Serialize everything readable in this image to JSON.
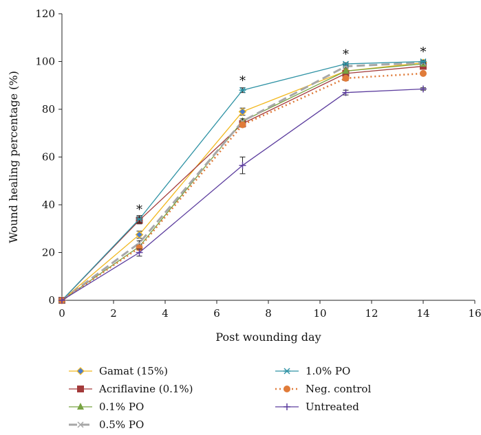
{
  "chart_data": {
    "type": "line",
    "xlabel": "Post wounding day",
    "ylabel": "Wound healing percentage (%)",
    "xlim": [
      0,
      16
    ],
    "ylim": [
      0,
      120
    ],
    "xticks": [
      "0",
      "2",
      "4",
      "6",
      "8",
      "10",
      "12",
      "14",
      "16"
    ],
    "yticks": [
      "0",
      "20",
      "40",
      "60",
      "80",
      "100",
      "120"
    ],
    "grid": false,
    "legend_position": "bottom",
    "x": [
      0,
      3,
      7,
      11,
      14
    ],
    "series": [
      {
        "name": "Gamat (15%)",
        "values": [
          0,
          27.5,
          79,
          96,
          99.5
        ],
        "color": "#F2B81F",
        "marker": "diamond",
        "dash": "solid",
        "errors": [
          0,
          1.5,
          1.5,
          1,
          0.5
        ]
      },
      {
        "name": "Acriflavine (0.1%)",
        "values": [
          0,
          33.5,
          74,
          95,
          98
        ],
        "color": "#A33A3A",
        "marker": "square",
        "dash": "solid",
        "errors": [
          0,
          1.5,
          1,
          1,
          0.5
        ]
      },
      {
        "name": "0.1% PO",
        "values": [
          0,
          22.5,
          75,
          96,
          99
        ],
        "color": "#77A342",
        "marker": "triangle",
        "dash": "solid",
        "errors": [
          0,
          1,
          1,
          1,
          0.5
        ]
      },
      {
        "name": "0.5% PO",
        "values": [
          0,
          24,
          75,
          98,
          99.5
        ],
        "color": "#A7A7A7",
        "marker": "x",
        "dash": "long",
        "errors": [
          0,
          1,
          1,
          0.5,
          0.5
        ]
      },
      {
        "name": "1.0% PO",
        "values": [
          0,
          34,
          88,
          99,
          100
        ],
        "color": "#2E92A4",
        "marker": "star",
        "dash": "solid",
        "errors": [
          0,
          1.5,
          1,
          0.5,
          0.5
        ]
      },
      {
        "name": "Neg. control",
        "values": [
          0,
          22,
          73.5,
          93,
          95
        ],
        "color": "#E07B39",
        "marker": "circle",
        "dash": "dotted",
        "errors": [
          0,
          1,
          1,
          1,
          0.5
        ]
      },
      {
        "name": "Untreated",
        "values": [
          0,
          20,
          56.5,
          87,
          88.5
        ],
        "color": "#5C3D9E",
        "marker": "plus",
        "dash": "solid",
        "errors": [
          0,
          1.5,
          3.5,
          1,
          0.5
        ]
      }
    ],
    "annotations": [
      {
        "text": "*",
        "x": 3,
        "y": 38
      },
      {
        "text": "*",
        "x": 7,
        "y": 92
      },
      {
        "text": "*",
        "x": 11,
        "y": 103
      },
      {
        "text": "*",
        "x": 14,
        "y": 104
      }
    ]
  }
}
